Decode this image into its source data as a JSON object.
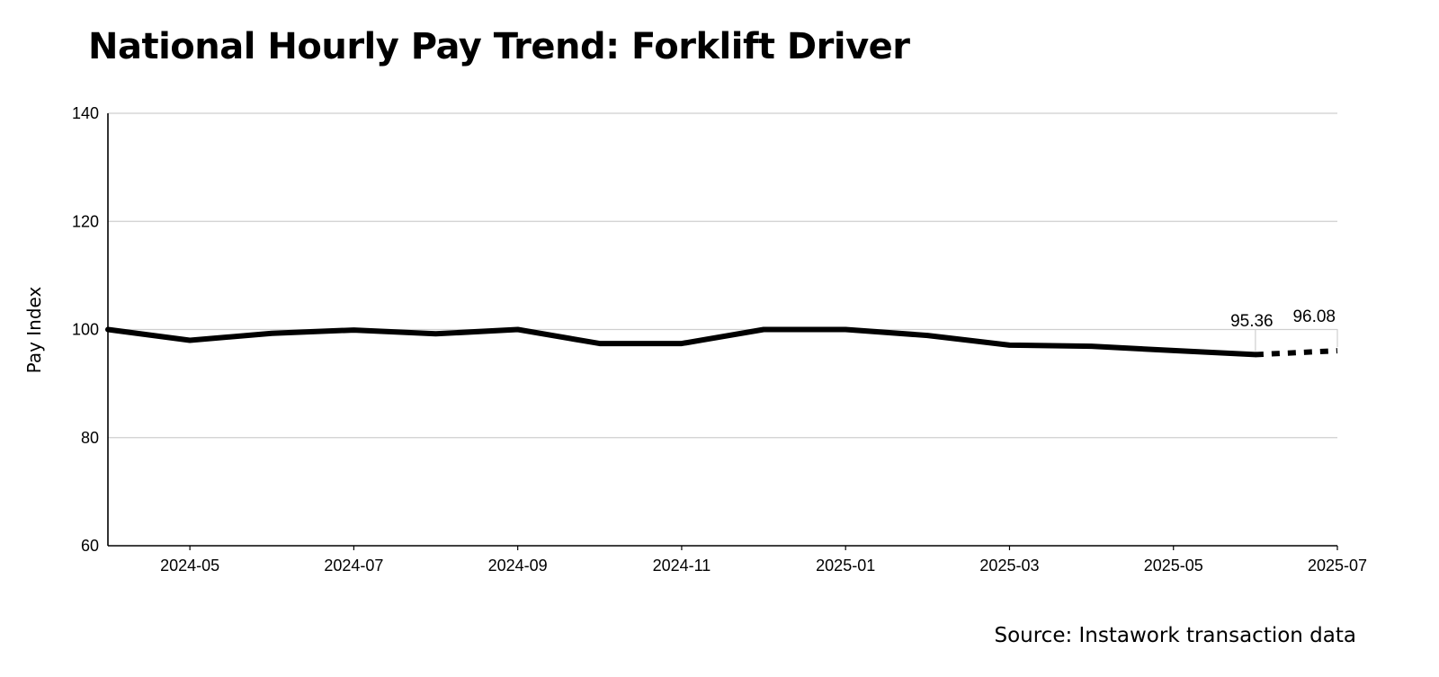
{
  "chart_data": {
    "type": "line",
    "title": "National Hourly Pay Trend: Forklift Driver",
    "xlabel": "",
    "ylabel": "Pay Index",
    "ylim": [
      60,
      140
    ],
    "yticks": [
      "60",
      "80",
      "100",
      "120",
      "140"
    ],
    "xlim": [
      "2024-04",
      "2025-07"
    ],
    "xticks": [
      "2024-05",
      "2024-07",
      "2024-09",
      "2024-11",
      "2025-01",
      "2025-03",
      "2025-05",
      "2025-07"
    ],
    "grid": true,
    "series": [
      {
        "style": "solid",
        "color": "#000000",
        "points": [
          {
            "x": "2024-04",
            "y": 100.0
          },
          {
            "x": "2024-05",
            "y": 98.0
          },
          {
            "x": "2024-06",
            "y": 99.3
          },
          {
            "x": "2024-07",
            "y": 99.9
          },
          {
            "x": "2024-08",
            "y": 99.2
          },
          {
            "x": "2024-09",
            "y": 100.0
          },
          {
            "x": "2024-10",
            "y": 97.4
          },
          {
            "x": "2024-11",
            "y": 97.4
          },
          {
            "x": "2024-12",
            "y": 100.0
          },
          {
            "x": "2025-01",
            "y": 100.0
          },
          {
            "x": "2025-02",
            "y": 98.9
          },
          {
            "x": "2025-03",
            "y": 97.1
          },
          {
            "x": "2025-04",
            "y": 96.9
          },
          {
            "x": "2025-05",
            "y": 96.1
          },
          {
            "x": "2025-06",
            "y": 95.36
          }
        ]
      },
      {
        "style": "dotted",
        "color": "#000000",
        "points": [
          {
            "x": "2025-06",
            "y": 95.36
          },
          {
            "x": "2025-07",
            "y": 96.08
          }
        ]
      }
    ],
    "annotations": [
      {
        "x": "2025-06",
        "y": 95.36,
        "text": "95.36"
      },
      {
        "x": "2025-07",
        "y": 96.08,
        "text": "96.08"
      }
    ]
  },
  "source_note": "Source: Instawork transaction data"
}
